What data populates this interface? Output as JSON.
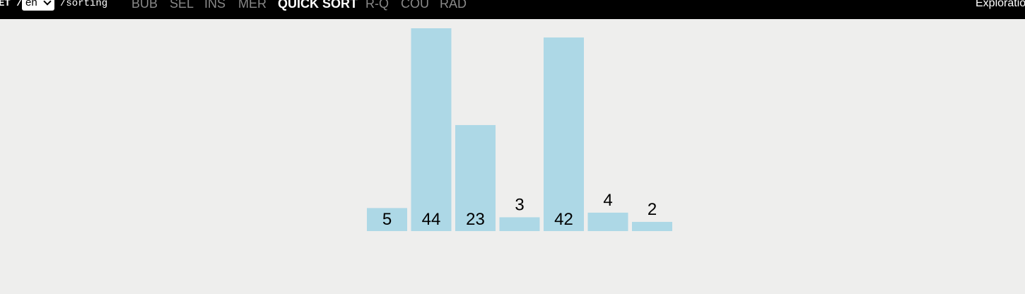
{
  "nav": {
    "breadcrumb_prefix": "ET /",
    "language": "en",
    "path": "/sorting",
    "tabs": [
      {
        "label": "BUB",
        "active": false
      },
      {
        "label": "SEL",
        "active": false
      },
      {
        "label": "INS",
        "active": false
      },
      {
        "label": "MER",
        "active": false
      },
      {
        "label": "QUICK SORT",
        "active": true
      },
      {
        "label": "R-Q",
        "active": false
      },
      {
        "label": "COU",
        "active": false
      },
      {
        "label": "RAD",
        "active": false
      }
    ],
    "right_link": "Exploration Mode"
  },
  "colors": {
    "topbar": "#000000",
    "background": "#eeeeed",
    "bar": "#add8e6",
    "tab_inactive": "#8a8a8a",
    "tab_active": "#ffffff"
  },
  "chart_data": {
    "type": "bar",
    "values": [
      5,
      44,
      23,
      3,
      42,
      4,
      2
    ],
    "labels": [
      "5",
      "44",
      "23",
      "3",
      "42",
      "4",
      "2"
    ]
  }
}
